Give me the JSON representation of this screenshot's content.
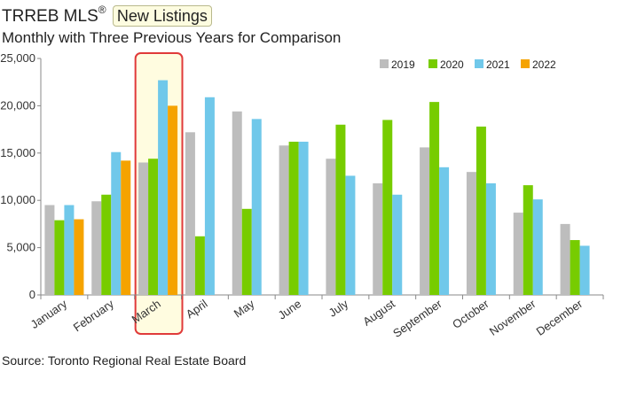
{
  "header": {
    "title_prefix": "TRREB MLS",
    "title_reg": "®",
    "badge": "New Listings",
    "subtitle": "Monthly with Three Previous Years for Comparison"
  },
  "footer": {
    "source": "Source: Toronto Regional Real Estate Board"
  },
  "colors": {
    "2019": "#bdbdbd",
    "2020": "#77cc00",
    "2021": "#70c8ea",
    "2022": "#f5a300",
    "highlight_border": "#e03a3a",
    "highlight_fill": "#fffce0",
    "axis": "#888888"
  },
  "chart_data": {
    "type": "bar",
    "title": "TRREB MLS® New Listings",
    "subtitle": "Monthly with Three Previous Years for Comparison",
    "categories": [
      "January",
      "February",
      "March",
      "April",
      "May",
      "June",
      "July",
      "August",
      "September",
      "October",
      "November",
      "December"
    ],
    "highlight_category": "March",
    "series": [
      {
        "name": "2019",
        "values": [
          9500,
          9900,
          14000,
          17200,
          19400,
          15800,
          14400,
          11800,
          15600,
          13000,
          8700,
          7500
        ]
      },
      {
        "name": "2020",
        "values": [
          7900,
          10600,
          14400,
          6200,
          9100,
          16200,
          18000,
          18500,
          20400,
          17800,
          11600,
          5800
        ]
      },
      {
        "name": "2021",
        "values": [
          9500,
          15100,
          22700,
          20900,
          18600,
          16200,
          12600,
          10600,
          13500,
          11800,
          10100,
          5200
        ]
      },
      {
        "name": "2022",
        "values": [
          8000,
          14200,
          20000,
          null,
          null,
          null,
          null,
          null,
          null,
          null,
          null,
          null
        ]
      }
    ],
    "ylim": [
      0,
      25000
    ],
    "yticks": [
      0,
      5000,
      10000,
      15000,
      20000,
      25000
    ],
    "ytick_labels": [
      "0",
      "5,000",
      "10,000",
      "15,000",
      "20,000",
      "25,000"
    ],
    "legend_position": "top-right",
    "xlabel": "",
    "ylabel": ""
  }
}
